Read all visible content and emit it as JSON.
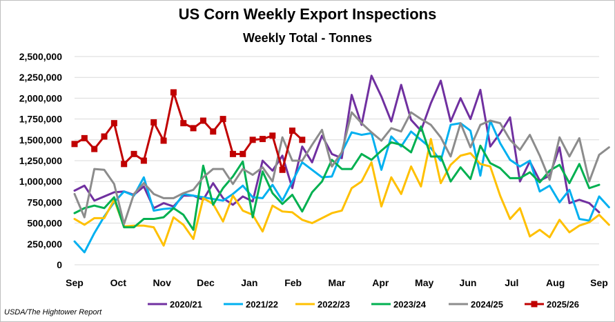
{
  "chart_data": {
    "type": "line",
    "title": "US Corn Weekly Export Inspections",
    "subtitle": "Weekly Total - Tonnes",
    "source": "USDA/The Hightower Report",
    "xlabel": "",
    "ylabel": "",
    "ylim": [
      0,
      2500000
    ],
    "yticks": [
      0,
      250000,
      500000,
      750000,
      1000000,
      1250000,
      1500000,
      1750000,
      2000000,
      2250000,
      2500000
    ],
    "ytick_labels": [
      "0",
      "250,000",
      "500,000",
      "750,000",
      "1,000,000",
      "1,250,000",
      "1,500,000",
      "1,750,000",
      "2,000,000",
      "2,250,000",
      "2,500,000"
    ],
    "xlim": [
      0,
      53
    ],
    "month_labels": [
      "Sep",
      "Oct",
      "Nov",
      "Dec",
      "Jan",
      "Feb",
      "Mar",
      "Apr",
      "May",
      "Jun",
      "Jul",
      "Aug",
      "Sep"
    ],
    "x_unit": "week of marketing year (starting early September)",
    "series": [
      {
        "name": "2020/21",
        "color": "#7030a0",
        "marker": "none",
        "values": [
          890000,
          950000,
          770000,
          820000,
          870000,
          880000,
          840000,
          940000,
          680000,
          740000,
          700000,
          830000,
          830000,
          780000,
          980000,
          800000,
          720000,
          820000,
          760000,
          1250000,
          1130000,
          1310000,
          920000,
          1420000,
          1230000,
          1550000,
          1330000,
          1280000,
          2040000,
          1680000,
          2270000,
          2020000,
          1720000,
          2160000,
          1740000,
          1610000,
          1940000,
          2210000,
          1720000,
          2000000,
          1750000,
          2100000,
          1420000,
          1580000,
          1770000,
          1000000,
          1240000,
          1010000,
          1070000,
          1410000,
          740000,
          780000,
          740000,
          630000
        ]
      },
      {
        "name": "2021/22",
        "color": "#00b0f0",
        "marker": "none",
        "values": [
          280000,
          150000,
          380000,
          580000,
          750000,
          880000,
          830000,
          1050000,
          650000,
          670000,
          680000,
          850000,
          830000,
          810000,
          790000,
          770000,
          850000,
          950000,
          810000,
          800000,
          960000,
          770000,
          1000000,
          1230000,
          1140000,
          1050000,
          1060000,
          1350000,
          1590000,
          1560000,
          1580000,
          1140000,
          1540000,
          1420000,
          1600000,
          1500000,
          1400000,
          1250000,
          1680000,
          1700000,
          1610000,
          1070000,
          1730000,
          1460000,
          1260000,
          1180000,
          1250000,
          880000,
          950000,
          750000,
          900000,
          550000,
          530000,
          820000,
          690000
        ]
      },
      {
        "name": "2022/23",
        "color": "#ffc000",
        "marker": "none",
        "values": [
          550000,
          480000,
          560000,
          560000,
          780000,
          460000,
          470000,
          470000,
          450000,
          230000,
          570000,
          480000,
          310000,
          800000,
          730000,
          520000,
          830000,
          650000,
          600000,
          400000,
          710000,
          640000,
          630000,
          540000,
          500000,
          560000,
          620000,
          650000,
          920000,
          1000000,
          1230000,
          700000,
          1050000,
          850000,
          1180000,
          940000,
          1510000,
          980000,
          1200000,
          1310000,
          1340000,
          1210000,
          1180000,
          830000,
          550000,
          680000,
          340000,
          420000,
          330000,
          540000,
          390000,
          470000,
          510000,
          600000,
          480000
        ]
      },
      {
        "name": "2023/24",
        "color": "#00b050",
        "marker": "none",
        "values": [
          620000,
          680000,
          710000,
          680000,
          810000,
          450000,
          450000,
          550000,
          550000,
          570000,
          680000,
          600000,
          420000,
          1190000,
          720000,
          920000,
          1060000,
          1240000,
          570000,
          1120000,
          860000,
          730000,
          840000,
          640000,
          870000,
          1000000,
          1260000,
          1150000,
          1150000,
          1330000,
          1260000,
          1370000,
          1470000,
          1440000,
          1350000,
          1660000,
          1300000,
          1300000,
          1000000,
          1170000,
          1030000,
          1430000,
          1220000,
          1160000,
          1040000,
          1040000,
          1110000,
          990000,
          1130000,
          1200000,
          980000,
          1210000,
          920000,
          960000
        ]
      },
      {
        "name": "2024/25",
        "color": "#8c8c8c",
        "marker": "none",
        "values": [
          850000,
          570000,
          1150000,
          1140000,
          970000,
          490000,
          850000,
          980000,
          850000,
          800000,
          800000,
          860000,
          900000,
          1050000,
          1150000,
          1150000,
          970000,
          1150000,
          1080000,
          1170000,
          1000000,
          1530000,
          1250000,
          1250000,
          1440000,
          1620000,
          1180000,
          1350000,
          1830000,
          1700000,
          1590000,
          1490000,
          1640000,
          1600000,
          1830000,
          1750000,
          1680000,
          1530000,
          1300000,
          1700000,
          1410000,
          1680000,
          1730000,
          1700000,
          1500000,
          1380000,
          1560000,
          1310000,
          1020000,
          1530000,
          1300000,
          1520000,
          1000000,
          1320000,
          1410000
        ]
      },
      {
        "name": "2025/26",
        "color": "#c00000",
        "marker": "square",
        "values": [
          1450000,
          1520000,
          1390000,
          1540000,
          1700000,
          1210000,
          1330000,
          1250000,
          1710000,
          1490000,
          2070000,
          1700000,
          1640000,
          1730000,
          1600000,
          1750000,
          1330000,
          1330000,
          1500000,
          1510000,
          1550000,
          1140000,
          1610000,
          1500000
        ]
      }
    ]
  }
}
